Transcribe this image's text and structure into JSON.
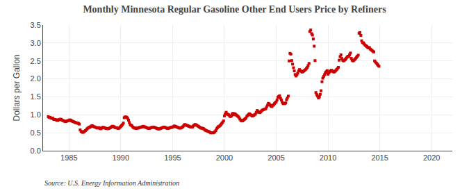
{
  "chart_data": {
    "type": "scatter",
    "title": "Monthly Minnesota Regular Gasoline Other End Users Price by Refiners",
    "ylabel": "Dollars per Gallon",
    "annotations": [
      "Source: U.S. Energy Information Administration"
    ],
    "color": "#cc0000",
    "marker": "square",
    "grid": true,
    "xlim": [
      1982.5,
      2022
    ],
    "ylim": [
      0.0,
      3.5
    ],
    "xticks": [
      1985,
      1990,
      1995,
      2000,
      2005,
      2010,
      2015,
      2020
    ],
    "yticks": [
      {
        "value": 0.0,
        "label": "0.0"
      },
      0.5,
      {
        "value": 1.0,
        "label": "1.0"
      },
      1.5,
      {
        "value": 2.0,
        "label": "2.0"
      },
      2.5,
      {
        "value": 3.0,
        "label": "3.0"
      },
      3.5
    ],
    "x": [
      1983.0,
      1983.08,
      1983.17,
      1983.25,
      1983.33,
      1983.42,
      1983.5,
      1983.58,
      1983.67,
      1983.75,
      1983.83,
      1983.92,
      1984.0,
      1984.08,
      1984.17,
      1984.25,
      1984.33,
      1984.42,
      1984.5,
      1984.58,
      1984.67,
      1984.75,
      1984.83,
      1984.92,
      1985.0,
      1985.08,
      1985.17,
      1985.25,
      1985.33,
      1985.42,
      1985.5,
      1985.58,
      1985.67,
      1985.75,
      1985.83,
      1985.92,
      1986.0,
      1986.08,
      1986.17,
      1986.25,
      1986.33,
      1986.42,
      1986.5,
      1986.58,
      1986.67,
      1986.75,
      1986.83,
      1986.92,
      1987.0,
      1987.08,
      1987.17,
      1987.25,
      1987.33,
      1987.42,
      1987.5,
      1987.58,
      1987.67,
      1987.75,
      1987.83,
      1987.92,
      1988.0,
      1988.08,
      1988.17,
      1988.25,
      1988.33,
      1988.42,
      1988.5,
      1988.58,
      1988.67,
      1988.75,
      1988.83,
      1988.92,
      1989.0,
      1989.08,
      1989.17,
      1989.25,
      1989.33,
      1989.42,
      1989.5,
      1989.58,
      1989.67,
      1989.75,
      1989.83,
      1989.92,
      1990.0,
      1990.08,
      1990.17,
      1990.25,
      1990.33,
      1990.42,
      1990.5,
      1990.58,
      1990.67,
      1990.75,
      1990.83,
      1990.92,
      1991.0,
      1991.08,
      1991.17,
      1991.25,
      1991.33,
      1991.42,
      1991.5,
      1991.58,
      1991.67,
      1991.75,
      1991.83,
      1991.92,
      1992.0,
      1992.08,
      1992.17,
      1992.25,
      1992.33,
      1992.42,
      1992.5,
      1992.58,
      1992.67,
      1992.75,
      1992.83,
      1992.92,
      1993.0,
      1993.08,
      1993.17,
      1993.25,
      1993.33,
      1993.42,
      1993.5,
      1993.58,
      1993.67,
      1993.75,
      1993.83,
      1993.92,
      1994.0,
      1994.08,
      1994.17,
      1994.25,
      1994.33,
      1994.42,
      1994.5,
      1994.58,
      1994.67,
      1994.75,
      1994.83,
      1994.92,
      1995.0,
      1995.08,
      1995.17,
      1995.25,
      1995.33,
      1995.42,
      1995.5,
      1995.58,
      1995.67,
      1995.75,
      1995.83,
      1995.92,
      1996.0,
      1996.08,
      1996.17,
      1996.25,
      1996.33,
      1996.42,
      1996.5,
      1996.58,
      1996.67,
      1996.75,
      1996.83,
      1996.92,
      1997.0,
      1997.08,
      1997.17,
      1997.25,
      1997.33,
      1997.42,
      1997.5,
      1997.58,
      1997.67,
      1997.75,
      1997.83,
      1997.92,
      1998.0,
      1998.08,
      1998.17,
      1998.25,
      1998.33,
      1998.42,
      1998.5,
      1998.58,
      1998.67,
      1998.75,
      1998.83,
      1998.92,
      1999.0,
      1999.08,
      1999.17,
      1999.25,
      1999.33,
      1999.42,
      1999.5,
      1999.58,
      1999.67,
      1999.75,
      1999.83,
      1999.92,
      2000.0,
      2000.08,
      2000.17,
      2000.25,
      2000.33,
      2000.42,
      2000.5,
      2000.58,
      2000.67,
      2000.75,
      2000.83,
      2000.92,
      2001.0,
      2001.08,
      2001.17,
      2001.25,
      2001.33,
      2001.42,
      2001.5,
      2001.58,
      2001.67,
      2001.75,
      2001.83,
      2001.92,
      2002.0,
      2002.08,
      2002.17,
      2002.25,
      2002.33,
      2002.42,
      2002.5,
      2002.58,
      2002.67,
      2002.75,
      2002.83,
      2002.92,
      2003.0,
      2003.08,
      2003.17,
      2003.25,
      2003.33,
      2003.42,
      2003.5,
      2003.58,
      2003.67,
      2003.75,
      2003.83,
      2003.92,
      2004.0,
      2004.08,
      2004.17,
      2004.25,
      2004.33,
      2004.42,
      2004.5,
      2004.58,
      2004.67,
      2004.75,
      2004.83,
      2004.92,
      2005.0,
      2005.08,
      2005.17,
      2005.25,
      2005.33,
      2005.42,
      2005.5,
      2005.58,
      2005.67,
      2005.75,
      2005.83,
      2005.92,
      2006.0,
      2006.08,
      2006.17,
      2006.25,
      2006.33,
      2006.42,
      2006.5,
      2006.58,
      2006.67,
      2006.75,
      2006.83,
      2006.92,
      2007.0,
      2007.08,
      2007.17,
      2007.25,
      2007.33,
      2007.42,
      2007.5,
      2007.58,
      2007.67,
      2007.75,
      2007.83,
      2007.92,
      2008.0,
      2008.08,
      2008.17,
      2008.25,
      2008.33,
      2008.42,
      2008.5,
      2008.58,
      2008.67,
      2008.75,
      2008.83,
      2008.92,
      2009.0,
      2009.08,
      2009.17,
      2009.25,
      2009.33,
      2009.42,
      2009.5,
      2009.58,
      2009.67,
      2009.75,
      2009.83,
      2009.92,
      2010.0,
      2010.08,
      2010.17,
      2010.25,
      2010.33,
      2010.42,
      2010.5,
      2010.58,
      2010.67,
      2010.75,
      2010.83,
      2010.92,
      2011.0,
      2011.08,
      2011.17,
      2011.25,
      2011.33,
      2011.42,
      2011.5,
      2011.58,
      2011.67,
      2011.75,
      2011.83,
      2011.92,
      2012.0,
      2012.08,
      2012.17,
      2012.25,
      2012.33,
      2012.42,
      2012.5,
      2012.58,
      2012.67,
      2012.75,
      2012.83,
      2012.92,
      2013.0,
      2013.08,
      2013.17,
      2013.25,
      2013.33,
      2013.42,
      2013.5,
      2013.58,
      2013.67,
      2013.75,
      2013.83,
      2013.92,
      2014.0,
      2014.08,
      2014.17,
      2014.25,
      2014.33,
      2014.42,
      2014.5,
      2014.58,
      2014.67,
      2014.75,
      2014.83,
      2014.92
    ],
    "values": [
      0.95,
      0.93,
      0.93,
      0.91,
      0.9,
      0.91,
      0.88,
      0.87,
      0.87,
      0.86,
      0.85,
      0.84,
      0.86,
      0.87,
      0.88,
      0.87,
      0.85,
      0.84,
      0.83,
      0.82,
      0.81,
      0.82,
      0.83,
      0.84,
      0.84,
      0.86,
      0.85,
      0.83,
      0.82,
      0.81,
      0.8,
      0.79,
      0.78,
      0.77,
      0.77,
      0.76,
      0.74,
      0.58,
      0.54,
      0.52,
      0.51,
      0.52,
      0.54,
      0.56,
      0.58,
      0.61,
      0.63,
      0.65,
      0.65,
      0.67,
      0.69,
      0.7,
      0.68,
      0.67,
      0.66,
      0.65,
      0.64,
      0.63,
      0.64,
      0.64,
      0.62,
      0.61,
      0.63,
      0.65,
      0.65,
      0.64,
      0.63,
      0.62,
      0.62,
      0.61,
      0.62,
      0.63,
      0.64,
      0.66,
      0.68,
      0.68,
      0.67,
      0.65,
      0.64,
      0.64,
      0.63,
      0.62,
      0.63,
      0.65,
      0.68,
      0.7,
      0.73,
      0.77,
      0.92,
      0.94,
      0.94,
      0.93,
      0.9,
      0.85,
      0.78,
      0.72,
      0.71,
      0.69,
      0.66,
      0.64,
      0.63,
      0.63,
      0.62,
      0.63,
      0.63,
      0.64,
      0.65,
      0.65,
      0.66,
      0.67,
      0.68,
      0.67,
      0.66,
      0.65,
      0.64,
      0.63,
      0.62,
      0.62,
      0.63,
      0.64,
      0.65,
      0.65,
      0.66,
      0.65,
      0.64,
      0.63,
      0.62,
      0.61,
      0.6,
      0.61,
      0.62,
      0.63,
      0.64,
      0.65,
      0.66,
      0.65,
      0.64,
      0.63,
      0.62,
      0.62,
      0.63,
      0.64,
      0.65,
      0.65,
      0.66,
      0.67,
      0.69,
      0.68,
      0.67,
      0.66,
      0.65,
      0.64,
      0.63,
      0.63,
      0.64,
      0.65,
      0.67,
      0.7,
      0.73,
      0.72,
      0.71,
      0.7,
      0.69,
      0.68,
      0.67,
      0.66,
      0.66,
      0.66,
      0.69,
      0.71,
      0.73,
      0.72,
      0.71,
      0.69,
      0.68,
      0.66,
      0.64,
      0.63,
      0.63,
      0.62,
      0.61,
      0.59,
      0.57,
      0.56,
      0.55,
      0.54,
      0.53,
      0.52,
      0.5,
      0.5,
      0.5,
      0.5,
      0.51,
      0.53,
      0.56,
      0.61,
      0.64,
      0.67,
      0.68,
      0.7,
      0.73,
      0.76,
      0.79,
      0.83,
      0.97,
      1.02,
      1.07,
      1.03,
      1.01,
      1.0,
      0.97,
      0.95,
      0.97,
      1.02,
      1.04,
      1.0,
      1.03,
      1.01,
      0.99,
      0.97,
      0.95,
      0.92,
      0.88,
      0.85,
      0.83,
      0.83,
      0.85,
      0.87,
      0.89,
      0.91,
      0.96,
      0.98,
      1.01,
      1.03,
      1.01,
      0.99,
      0.97,
      0.97,
      0.99,
      1.0,
      1.02,
      1.07,
      1.12,
      1.09,
      1.07,
      1.06,
      1.08,
      1.11,
      1.13,
      1.14,
      1.15,
      1.16,
      1.17,
      1.22,
      1.27,
      1.32,
      1.3,
      1.27,
      1.24,
      1.23,
      1.26,
      1.28,
      1.31,
      1.34,
      1.36,
      1.41,
      1.49,
      1.51,
      1.53,
      1.46,
      1.41,
      1.35,
      1.31,
      1.32,
      1.31,
      1.33,
      1.42,
      1.47,
      1.52,
      2.5,
      2.71,
      2.69,
      2.51,
      2.41,
      2.31,
      2.22,
      2.12,
      2.08,
      2.12,
      2.16,
      2.22,
      2.26,
      2.23,
      2.21,
      2.19,
      2.2,
      2.22,
      2.24,
      2.26,
      2.29,
      2.32,
      2.37,
      2.43,
      3.32,
      3.36,
      3.26,
      3.22,
      3.11,
      2.91,
      2.51,
      1.62,
      1.56,
      1.52,
      1.47,
      1.5,
      1.57,
      1.67,
      1.92,
      2.02,
      2.07,
      2.12,
      2.17,
      2.2,
      2.23,
      2.13,
      2.17,
      2.2,
      2.22,
      2.24,
      2.22,
      2.2,
      2.19,
      2.21,
      2.23,
      2.26,
      2.29,
      2.32,
      2.52,
      2.62,
      2.67,
      2.57,
      2.52,
      2.5,
      2.52,
      2.54,
      2.57,
      2.6,
      2.63,
      2.62,
      2.67,
      2.72,
      2.57,
      2.52,
      2.5,
      2.52,
      2.54,
      2.57,
      2.6,
      2.63,
      2.66,
      3.27,
      3.29,
      3.21,
      3.06,
      3.01,
      3.0,
      2.97,
      2.94,
      2.92,
      2.9,
      2.88,
      2.86,
      2.87,
      2.83,
      2.81,
      2.79,
      2.77,
      2.75,
      2.5,
      2.47,
      2.44,
      2.41,
      2.38,
      2.35
    ]
  }
}
